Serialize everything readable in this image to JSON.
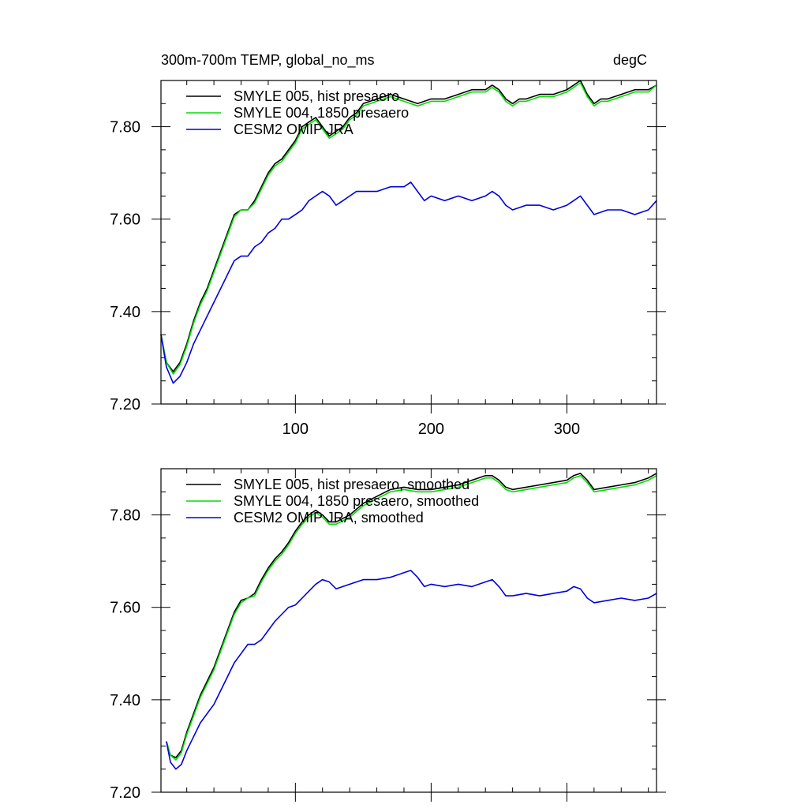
{
  "chart_data": [
    {
      "type": "line",
      "title_left": "300m-700m TEMP, global_no_ms",
      "title_right": "degC",
      "xlim": [
        1,
        366
      ],
      "ylim": [
        7.2,
        7.9
      ],
      "x_ticks": [
        100,
        200,
        300
      ],
      "x_tick_labels": [
        "100",
        "200",
        "300"
      ],
      "y_ticks": [
        7.2,
        7.4,
        7.6,
        7.8
      ],
      "y_tick_labels": [
        "7.20",
        "7.40",
        "7.60",
        "7.80"
      ],
      "legend": [
        "SMYLE 005, hist presaero",
        "SMYLE 004, 1850 presaero",
        "CESM2 OMIP JRA"
      ],
      "series": [
        {
          "name": "SMYLE 005, hist presaero",
          "color": "#000000",
          "x": [
            1,
            5,
            10,
            15,
            20,
            25,
            30,
            35,
            40,
            45,
            50,
            55,
            60,
            65,
            70,
            75,
            80,
            85,
            90,
            95,
            100,
            105,
            110,
            115,
            120,
            125,
            130,
            135,
            140,
            145,
            150,
            160,
            170,
            180,
            190,
            200,
            210,
            220,
            230,
            240,
            245,
            250,
            255,
            260,
            265,
            270,
            280,
            290,
            300,
            305,
            310,
            315,
            320,
            325,
            330,
            340,
            350,
            360,
            366
          ],
          "values": [
            7.35,
            7.29,
            7.27,
            7.29,
            7.33,
            7.38,
            7.42,
            7.45,
            7.49,
            7.53,
            7.57,
            7.61,
            7.62,
            7.62,
            7.64,
            7.67,
            7.7,
            7.72,
            7.73,
            7.75,
            7.77,
            7.8,
            7.81,
            7.82,
            7.8,
            7.78,
            7.79,
            7.8,
            7.82,
            7.83,
            7.85,
            7.86,
            7.87,
            7.86,
            7.85,
            7.86,
            7.86,
            7.87,
            7.88,
            7.88,
            7.89,
            7.88,
            7.86,
            7.85,
            7.86,
            7.86,
            7.87,
            7.87,
            7.88,
            7.89,
            7.9,
            7.87,
            7.85,
            7.86,
            7.86,
            7.87,
            7.88,
            7.88,
            7.89
          ]
        },
        {
          "name": "SMYLE 004, 1850 presaero",
          "color": "#00dd00",
          "x": [
            1,
            5,
            10,
            15,
            20,
            25,
            30,
            35,
            40,
            45,
            50,
            55,
            60,
            65,
            70,
            75,
            80,
            85,
            90,
            95,
            100,
            105,
            110,
            115,
            120,
            125,
            130,
            135,
            140,
            145,
            150,
            160,
            170,
            180,
            190,
            200,
            210,
            220,
            230,
            240,
            245,
            250,
            255,
            260,
            265,
            270,
            280,
            290,
            300,
            305,
            310,
            315,
            320,
            325,
            330,
            340,
            350,
            360,
            366
          ],
          "values": [
            7.35,
            7.29,
            7.265,
            7.285,
            7.325,
            7.375,
            7.415,
            7.445,
            7.485,
            7.525,
            7.565,
            7.605,
            7.62,
            7.62,
            7.635,
            7.665,
            7.695,
            7.715,
            7.725,
            7.745,
            7.765,
            7.795,
            7.805,
            7.815,
            7.795,
            7.775,
            7.785,
            7.795,
            7.815,
            7.825,
            7.845,
            7.855,
            7.865,
            7.855,
            7.845,
            7.855,
            7.855,
            7.865,
            7.875,
            7.875,
            7.885,
            7.875,
            7.855,
            7.845,
            7.855,
            7.855,
            7.865,
            7.865,
            7.875,
            7.885,
            7.895,
            7.865,
            7.845,
            7.855,
            7.855,
            7.865,
            7.875,
            7.875,
            7.89
          ]
        },
        {
          "name": "CESM2 OMIP JRA",
          "color": "#0000dd",
          "x": [
            1,
            5,
            10,
            15,
            20,
            25,
            30,
            35,
            40,
            45,
            50,
            55,
            60,
            65,
            70,
            75,
            80,
            85,
            90,
            95,
            100,
            105,
            110,
            115,
            120,
            125,
            130,
            135,
            140,
            145,
            150,
            160,
            170,
            180,
            185,
            190,
            195,
            200,
            210,
            220,
            230,
            240,
            245,
            250,
            255,
            260,
            270,
            280,
            290,
            300,
            305,
            310,
            315,
            320,
            330,
            340,
            350,
            360,
            366
          ],
          "values": [
            7.35,
            7.28,
            7.245,
            7.26,
            7.29,
            7.33,
            7.36,
            7.39,
            7.42,
            7.45,
            7.48,
            7.51,
            7.52,
            7.52,
            7.54,
            7.55,
            7.57,
            7.58,
            7.6,
            7.6,
            7.61,
            7.62,
            7.64,
            7.65,
            7.66,
            7.65,
            7.63,
            7.64,
            7.65,
            7.66,
            7.66,
            7.66,
            7.67,
            7.67,
            7.68,
            7.66,
            7.64,
            7.65,
            7.64,
            7.65,
            7.64,
            7.65,
            7.66,
            7.65,
            7.63,
            7.62,
            7.63,
            7.63,
            7.62,
            7.63,
            7.64,
            7.65,
            7.63,
            7.61,
            7.62,
            7.62,
            7.61,
            7.62,
            7.64
          ]
        }
      ]
    },
    {
      "type": "line",
      "xlim": [
        1,
        366
      ],
      "ylim": [
        7.2,
        7.9
      ],
      "x_ticks": [
        100,
        200,
        300
      ],
      "y_ticks": [
        7.2,
        7.4,
        7.6,
        7.8
      ],
      "y_tick_labels": [
        "7.20",
        "7.40",
        "7.60",
        "7.80"
      ],
      "legend": [
        "SMYLE 005, hist presaero, smoothed",
        "SMYLE 004, 1850 presaero, smoothed",
        "CESM2 OMIP JRA, smoothed"
      ],
      "series": [
        {
          "name": "SMYLE 005, hist presaero, smoothed",
          "color": "#000000",
          "x": [
            5,
            8,
            12,
            16,
            20,
            25,
            30,
            35,
            40,
            45,
            50,
            55,
            60,
            65,
            70,
            75,
            80,
            85,
            90,
            95,
            100,
            105,
            110,
            115,
            120,
            125,
            130,
            140,
            150,
            160,
            170,
            180,
            190,
            200,
            210,
            220,
            230,
            240,
            245,
            250,
            255,
            260,
            270,
            280,
            290,
            300,
            305,
            310,
            315,
            320,
            330,
            340,
            350,
            360,
            366
          ],
          "values": [
            7.31,
            7.28,
            7.275,
            7.29,
            7.33,
            7.37,
            7.41,
            7.44,
            7.47,
            7.51,
            7.55,
            7.59,
            7.615,
            7.62,
            7.63,
            7.66,
            7.685,
            7.705,
            7.72,
            7.74,
            7.765,
            7.785,
            7.8,
            7.81,
            7.8,
            7.785,
            7.785,
            7.8,
            7.825,
            7.84,
            7.855,
            7.86,
            7.855,
            7.855,
            7.86,
            7.865,
            7.875,
            7.885,
            7.885,
            7.875,
            7.86,
            7.855,
            7.86,
            7.865,
            7.87,
            7.875,
            7.885,
            7.89,
            7.875,
            7.855,
            7.86,
            7.865,
            7.87,
            7.88,
            7.89
          ]
        },
        {
          "name": "SMYLE 004, 1850 presaero, smoothed",
          "color": "#00dd00",
          "x": [
            5,
            8,
            12,
            16,
            20,
            25,
            30,
            35,
            40,
            45,
            50,
            55,
            60,
            65,
            70,
            75,
            80,
            85,
            90,
            95,
            100,
            105,
            110,
            115,
            120,
            125,
            130,
            140,
            150,
            160,
            170,
            180,
            190,
            200,
            210,
            220,
            230,
            240,
            245,
            250,
            255,
            260,
            270,
            280,
            290,
            300,
            305,
            310,
            315,
            320,
            330,
            340,
            350,
            360,
            366
          ],
          "values": [
            7.31,
            7.28,
            7.27,
            7.285,
            7.325,
            7.365,
            7.405,
            7.435,
            7.465,
            7.505,
            7.545,
            7.585,
            7.61,
            7.62,
            7.625,
            7.655,
            7.68,
            7.7,
            7.715,
            7.735,
            7.76,
            7.78,
            7.795,
            7.805,
            7.795,
            7.78,
            7.78,
            7.795,
            7.82,
            7.835,
            7.85,
            7.855,
            7.85,
            7.85,
            7.855,
            7.86,
            7.87,
            7.88,
            7.88,
            7.87,
            7.855,
            7.85,
            7.855,
            7.86,
            7.865,
            7.87,
            7.88,
            7.885,
            7.87,
            7.85,
            7.855,
            7.86,
            7.865,
            7.875,
            7.885
          ]
        },
        {
          "name": "CESM2 OMIP JRA, smoothed",
          "color": "#0000dd",
          "x": [
            5,
            8,
            12,
            16,
            20,
            25,
            30,
            35,
            40,
            45,
            50,
            55,
            60,
            65,
            70,
            75,
            80,
            85,
            90,
            95,
            100,
            105,
            110,
            115,
            120,
            125,
            130,
            140,
            150,
            160,
            170,
            180,
            185,
            190,
            195,
            200,
            210,
            220,
            230,
            240,
            245,
            250,
            255,
            260,
            270,
            280,
            290,
            300,
            305,
            310,
            315,
            320,
            330,
            340,
            350,
            360,
            366
          ],
          "values": [
            7.31,
            7.265,
            7.25,
            7.26,
            7.29,
            7.32,
            7.35,
            7.37,
            7.39,
            7.42,
            7.45,
            7.48,
            7.5,
            7.52,
            7.52,
            7.53,
            7.55,
            7.57,
            7.585,
            7.6,
            7.605,
            7.62,
            7.635,
            7.65,
            7.66,
            7.655,
            7.64,
            7.65,
            7.66,
            7.66,
            7.665,
            7.675,
            7.68,
            7.665,
            7.645,
            7.65,
            7.645,
            7.65,
            7.645,
            7.655,
            7.66,
            7.645,
            7.625,
            7.625,
            7.63,
            7.625,
            7.63,
            7.635,
            7.645,
            7.64,
            7.62,
            7.61,
            7.615,
            7.62,
            7.615,
            7.62,
            7.63
          ]
        }
      ]
    }
  ]
}
